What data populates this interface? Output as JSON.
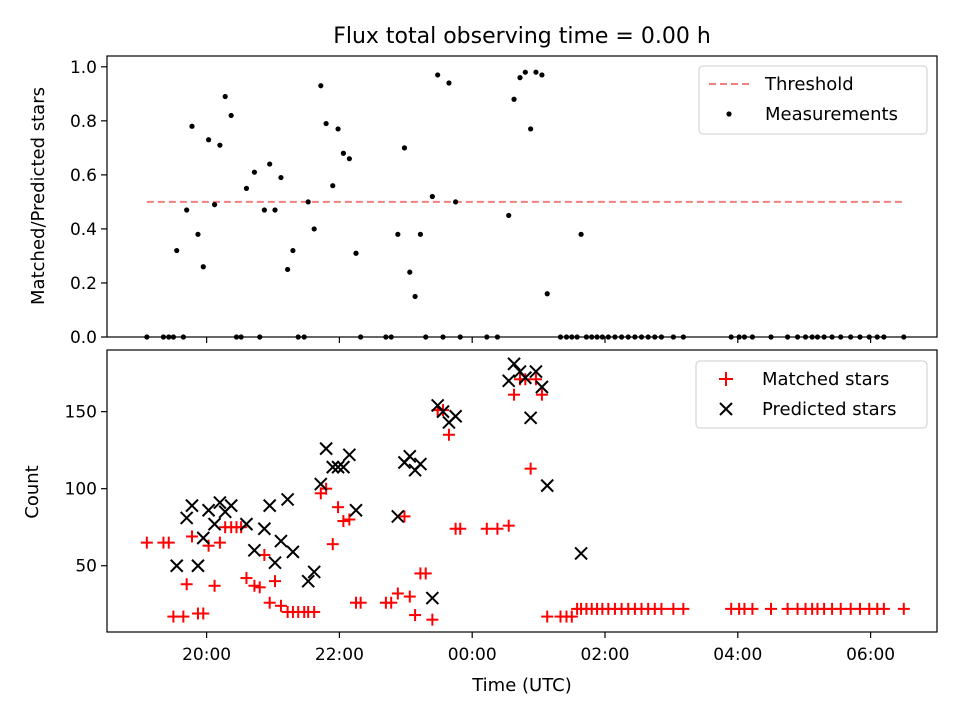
{
  "chart_data": [
    {
      "type": "scatter",
      "title": "Flux total observing time = 0.00 h",
      "xlabel": "",
      "ylabel": "Matched/Predicted stars",
      "x_unit": "hours relative to 20:00 UTC (negative = before 20:00)",
      "xlim": [
        -1.5,
        11.0
      ],
      "ylim": [
        0,
        1.04
      ],
      "yticks": [
        0.0,
        0.2,
        0.4,
        0.6,
        0.8,
        1.0
      ],
      "ytick_labels": [
        "0.0",
        "0.2",
        "0.4",
        "0.6",
        "0.8",
        "1.0"
      ],
      "grid": false,
      "legend_placement": "upper right",
      "legend": [
        "Threshold",
        "Measurements"
      ],
      "series": [
        {
          "name": "Threshold",
          "kind": "line",
          "style": "dashed",
          "color": "#f08080",
          "x": [
            -0.9,
            10.5
          ],
          "values": [
            0.5,
            0.5
          ]
        },
        {
          "name": "Measurements",
          "kind": "scatter",
          "color": "#000000",
          "points": [
            [
              -0.9,
              0
            ],
            [
              -0.65,
              0
            ],
            [
              -0.57,
              0
            ],
            [
              -0.5,
              0
            ],
            [
              -0.35,
              0
            ],
            [
              -0.45,
              0.32
            ],
            [
              -0.3,
              0.47
            ],
            [
              -0.22,
              0.78
            ],
            [
              -0.13,
              0.38
            ],
            [
              -0.05,
              0.26
            ],
            [
              0.03,
              0.73
            ],
            [
              0.12,
              0.49
            ],
            [
              0.2,
              0.71
            ],
            [
              0.28,
              0.89
            ],
            [
              0.37,
              0.82
            ],
            [
              0.45,
              0
            ],
            [
              0.52,
              0
            ],
            [
              0.6,
              0.55
            ],
            [
              0.72,
              0.61
            ],
            [
              0.8,
              0
            ],
            [
              0.87,
              0.47
            ],
            [
              0.95,
              0.64
            ],
            [
              1.03,
              0.47
            ],
            [
              1.12,
              0.59
            ],
            [
              1.22,
              0.25
            ],
            [
              1.3,
              0.32
            ],
            [
              1.38,
              0
            ],
            [
              1.47,
              0
            ],
            [
              1.53,
              0.5
            ],
            [
              1.62,
              0.4
            ],
            [
              1.72,
              0.93
            ],
            [
              1.8,
              0.79
            ],
            [
              1.9,
              0.56
            ],
            [
              1.98,
              0.77
            ],
            [
              2.06,
              0.68
            ],
            [
              2.15,
              0.66
            ],
            [
              2.25,
              0.31
            ],
            [
              2.32,
              0
            ],
            [
              2.7,
              0
            ],
            [
              2.78,
              0
            ],
            [
              2.88,
              0.38
            ],
            [
              2.98,
              0.7
            ],
            [
              3.06,
              0.24
            ],
            [
              3.14,
              0.15
            ],
            [
              3.22,
              0.38
            ],
            [
              3.3,
              0
            ],
            [
              3.4,
              0.52
            ],
            [
              3.48,
              0.97
            ],
            [
              3.56,
              0
            ],
            [
              3.65,
              0.94
            ],
            [
              3.75,
              0.5
            ],
            [
              3.82,
              0
            ],
            [
              4.22,
              0
            ],
            [
              4.38,
              0
            ],
            [
              4.55,
              0.45
            ],
            [
              4.63,
              0.88
            ],
            [
              4.72,
              0.96
            ],
            [
              4.8,
              0.98
            ],
            [
              4.88,
              0.77
            ],
            [
              4.96,
              0.98
            ],
            [
              5.05,
              0.97
            ],
            [
              5.13,
              0.16
            ],
            [
              5.33,
              0
            ],
            [
              5.42,
              0
            ],
            [
              5.5,
              0
            ],
            [
              5.58,
              0
            ],
            [
              5.64,
              0.38
            ],
            [
              5.72,
              0
            ],
            [
              5.8,
              0
            ],
            [
              5.88,
              0
            ],
            [
              5.96,
              0
            ],
            [
              6.05,
              0
            ],
            [
              6.15,
              0
            ],
            [
              6.25,
              0
            ],
            [
              6.35,
              0
            ],
            [
              6.45,
              0
            ],
            [
              6.55,
              0
            ],
            [
              6.65,
              0
            ],
            [
              6.75,
              0
            ],
            [
              6.85,
              0
            ],
            [
              7.03,
              0
            ],
            [
              7.18,
              0
            ],
            [
              7.9,
              0
            ],
            [
              8.02,
              0
            ],
            [
              8.1,
              0
            ],
            [
              8.22,
              0
            ],
            [
              8.5,
              0
            ],
            [
              8.75,
              0
            ],
            [
              8.9,
              0
            ],
            [
              9.02,
              0
            ],
            [
              9.12,
              0
            ],
            [
              9.2,
              0
            ],
            [
              9.3,
              0
            ],
            [
              9.42,
              0
            ],
            [
              9.55,
              0
            ],
            [
              9.7,
              0
            ],
            [
              9.84,
              0
            ],
            [
              9.98,
              0
            ],
            [
              10.1,
              0
            ],
            [
              10.2,
              0
            ],
            [
              10.5,
              0
            ]
          ]
        }
      ]
    },
    {
      "type": "scatter",
      "title": "",
      "xlabel": "Time (UTC)",
      "ylabel": "Count",
      "x_unit": "hours relative to 20:00 UTC (negative = before 20:00)",
      "xlim": [
        -1.5,
        11.0
      ],
      "ylim": [
        7,
        190
      ],
      "yticks": [
        50,
        100,
        150
      ],
      "ytick_labels": [
        "50",
        "100",
        "150"
      ],
      "xticks": [
        0,
        2,
        4,
        6,
        8,
        10
      ],
      "xtick_labels": [
        "20:00",
        "22:00",
        "00:00",
        "02:00",
        "04:00",
        "06:00"
      ],
      "grid": false,
      "legend_placement": "upper right",
      "legend": [
        "Matched stars",
        "Predicted stars"
      ],
      "series": [
        {
          "name": "Matched stars",
          "kind": "scatter",
          "marker": "plus",
          "color": "#ff0000",
          "points": [
            [
              -0.9,
              65
            ],
            [
              -0.65,
              65
            ],
            [
              -0.57,
              65
            ],
            [
              -0.5,
              17
            ],
            [
              -0.35,
              17
            ],
            [
              -0.3,
              38
            ],
            [
              -0.22,
              69
            ],
            [
              -0.13,
              19
            ],
            [
              -0.05,
              19
            ],
            [
              0.03,
              63
            ],
            [
              0.12,
              37
            ],
            [
              0.2,
              65
            ],
            [
              0.28,
              75
            ],
            [
              0.37,
              75
            ],
            [
              0.45,
              75
            ],
            [
              0.52,
              75
            ],
            [
              0.6,
              42
            ],
            [
              0.72,
              37
            ],
            [
              0.8,
              36
            ],
            [
              0.87,
              57
            ],
            [
              0.95,
              26
            ],
            [
              1.03,
              40
            ],
            [
              1.12,
              24
            ],
            [
              1.22,
              20
            ],
            [
              1.3,
              20
            ],
            [
              1.38,
              20
            ],
            [
              1.47,
              20
            ],
            [
              1.53,
              20
            ],
            [
              1.62,
              20
            ],
            [
              1.72,
              97
            ],
            [
              1.8,
              100
            ],
            [
              1.9,
              64
            ],
            [
              1.98,
              88
            ],
            [
              2.06,
              79
            ],
            [
              2.15,
              80
            ],
            [
              2.25,
              26
            ],
            [
              2.32,
              26
            ],
            [
              2.7,
              26
            ],
            [
              2.78,
              26
            ],
            [
              2.88,
              32
            ],
            [
              2.98,
              82
            ],
            [
              3.06,
              30
            ],
            [
              3.14,
              18
            ],
            [
              3.22,
              45
            ],
            [
              3.3,
              45
            ],
            [
              3.4,
              15
            ],
            [
              3.48,
              151
            ],
            [
              3.56,
              151
            ],
            [
              3.65,
              135
            ],
            [
              3.75,
              74
            ],
            [
              3.82,
              74
            ],
            [
              4.22,
              74
            ],
            [
              4.38,
              74
            ],
            [
              4.55,
              76
            ],
            [
              4.63,
              161
            ],
            [
              4.72,
              171
            ],
            [
              4.8,
              171
            ],
            [
              4.88,
              113
            ],
            [
              4.96,
              171
            ],
            [
              5.05,
              161
            ],
            [
              5.13,
              17
            ],
            [
              5.33,
              17
            ],
            [
              5.42,
              17
            ],
            [
              5.5,
              17
            ],
            [
              5.58,
              22
            ],
            [
              5.64,
              22
            ],
            [
              5.72,
              22
            ],
            [
              5.8,
              22
            ],
            [
              5.88,
              22
            ],
            [
              5.96,
              22
            ],
            [
              6.05,
              22
            ],
            [
              6.15,
              22
            ],
            [
              6.25,
              22
            ],
            [
              6.35,
              22
            ],
            [
              6.45,
              22
            ],
            [
              6.55,
              22
            ],
            [
              6.65,
              22
            ],
            [
              6.75,
              22
            ],
            [
              6.85,
              22
            ],
            [
              7.03,
              22
            ],
            [
              7.18,
              22
            ],
            [
              7.9,
              22
            ],
            [
              8.02,
              22
            ],
            [
              8.1,
              22
            ],
            [
              8.22,
              22
            ],
            [
              8.5,
              22
            ],
            [
              8.75,
              22
            ],
            [
              8.9,
              22
            ],
            [
              9.02,
              22
            ],
            [
              9.12,
              22
            ],
            [
              9.2,
              22
            ],
            [
              9.3,
              22
            ],
            [
              9.42,
              22
            ],
            [
              9.55,
              22
            ],
            [
              9.7,
              22
            ],
            [
              9.84,
              22
            ],
            [
              9.98,
              22
            ],
            [
              10.1,
              22
            ],
            [
              10.2,
              22
            ],
            [
              10.5,
              22
            ]
          ]
        },
        {
          "name": "Predicted stars",
          "kind": "scatter",
          "marker": "x",
          "color": "#000000",
          "points": [
            [
              -0.45,
              50
            ],
            [
              -0.3,
              81
            ],
            [
              -0.22,
              89
            ],
            [
              -0.13,
              50
            ],
            [
              -0.05,
              68
            ],
            [
              0.03,
              86
            ],
            [
              0.12,
              77
            ],
            [
              0.2,
              91
            ],
            [
              0.28,
              85
            ],
            [
              0.37,
              89
            ],
            [
              0.6,
              77
            ],
            [
              0.72,
              60
            ],
            [
              0.87,
              74
            ],
            [
              0.95,
              89
            ],
            [
              1.03,
              52
            ],
            [
              1.12,
              66
            ],
            [
              1.22,
              93
            ],
            [
              1.3,
              59
            ],
            [
              1.53,
              40
            ],
            [
              1.62,
              46
            ],
            [
              1.72,
              103
            ],
            [
              1.8,
              126
            ],
            [
              1.9,
              114
            ],
            [
              1.98,
              114
            ],
            [
              2.06,
              114
            ],
            [
              2.15,
              122
            ],
            [
              2.25,
              86
            ],
            [
              2.88,
              82
            ],
            [
              2.98,
              117
            ],
            [
              3.06,
              121
            ],
            [
              3.14,
              112
            ],
            [
              3.22,
              116
            ],
            [
              3.4,
              29
            ],
            [
              3.48,
              154
            ],
            [
              3.56,
              150
            ],
            [
              3.65,
              143
            ],
            [
              3.75,
              147
            ],
            [
              4.55,
              170
            ],
            [
              4.63,
              181
            ],
            [
              4.72,
              176
            ],
            [
              4.8,
              172
            ],
            [
              4.88,
              146
            ],
            [
              4.96,
              176
            ],
            [
              5.05,
              166
            ],
            [
              5.13,
              102
            ],
            [
              5.64,
              58
            ]
          ]
        }
      ]
    }
  ]
}
